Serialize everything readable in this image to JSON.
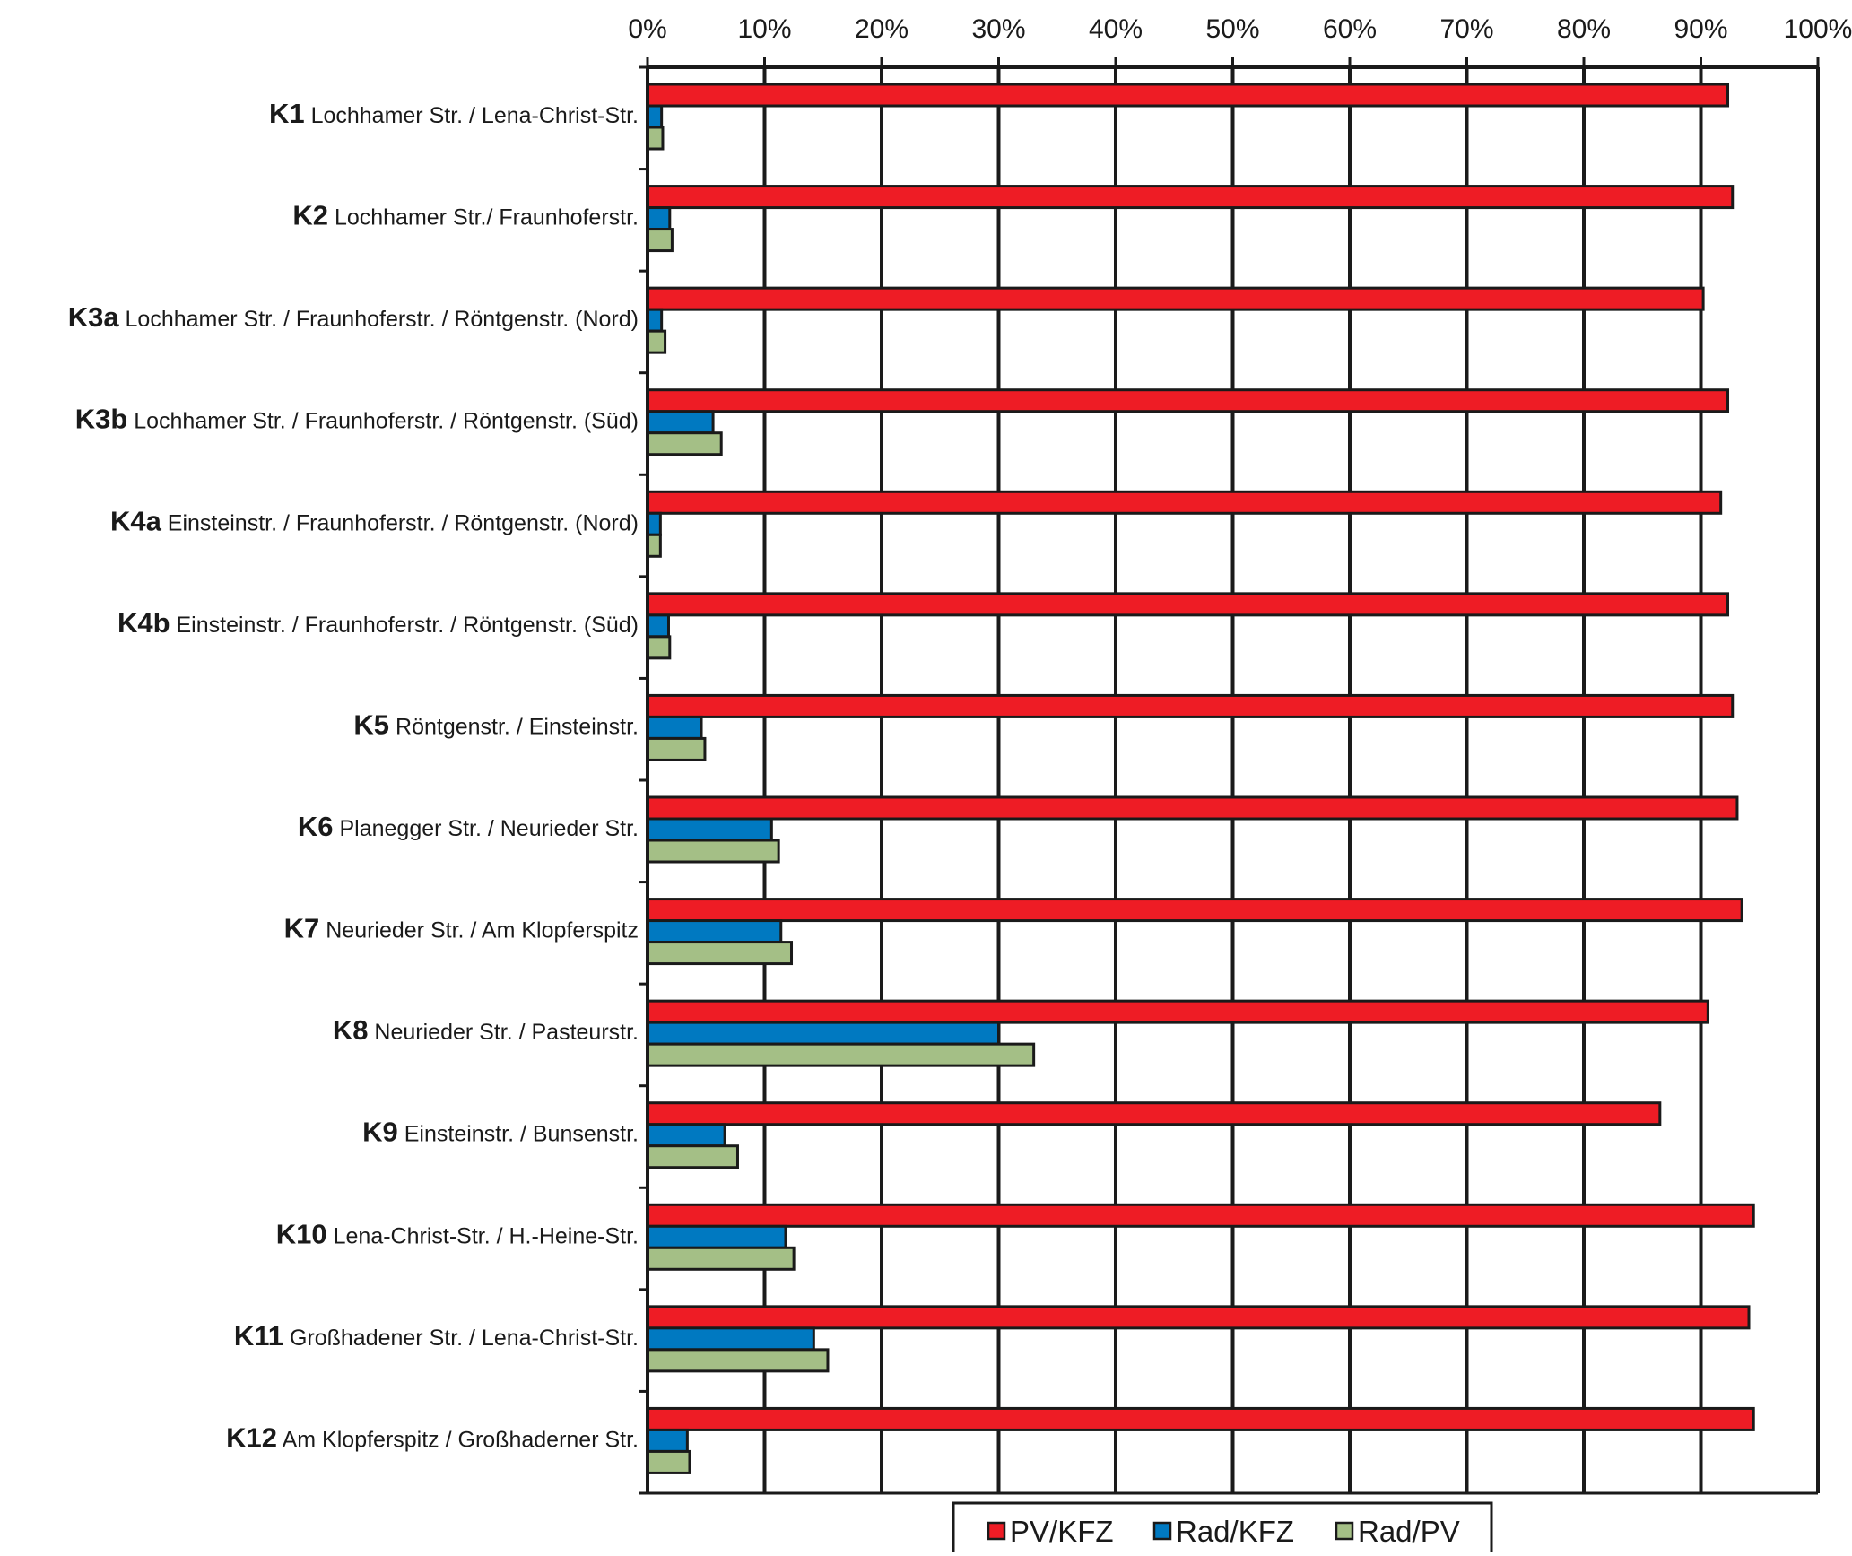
{
  "chart_data": {
    "type": "bar",
    "orientation": "horizontal",
    "x_ticks": [
      "0%",
      "10%",
      "20%",
      "30%",
      "40%",
      "50%",
      "60%",
      "70%",
      "80%",
      "90%",
      "100%"
    ],
    "xlim": [
      0,
      100
    ],
    "grid": true,
    "legend_position": "bottom",
    "categories": [
      {
        "code": "K1",
        "name": "Lochhamer Str. / Lena-Christ-Str."
      },
      {
        "code": "K2",
        "name": "Lochhamer Str./ Fraunhoferstr."
      },
      {
        "code": "K3a",
        "name": "Lochhamer Str. / Fraunhoferstr. / Röntgenstr. (Nord)"
      },
      {
        "code": "K3b",
        "name": "Lochhamer Str. / Fraunhoferstr. / Röntgenstr. (Süd)"
      },
      {
        "code": "K4a",
        "name": "Einsteinstr. / Fraunhoferstr. / Röntgenstr. (Nord)"
      },
      {
        "code": "K4b",
        "name": "Einsteinstr. / Fraunhoferstr. / Röntgenstr. (Süd)"
      },
      {
        "code": "K5",
        "name": "Röntgenstr. / Einsteinstr."
      },
      {
        "code": "K6",
        "name": "Planegger Str. / Neurieder Str."
      },
      {
        "code": "K7",
        "name": "Neurieder Str. / Am Klopferspitz"
      },
      {
        "code": "K8",
        "name": "Neurieder Str. / Pasteurstr."
      },
      {
        "code": "K9",
        "name": "Einsteinstr. / Bunsenstr."
      },
      {
        "code": "K10",
        "name": "Lena-Christ-Str. / H.-Heine-Str."
      },
      {
        "code": "K11",
        "name": "Großhadener Str. / Lena-Christ-Str."
      },
      {
        "code": "K12",
        "name": "Am Klopferspitz / Großhaderner Str."
      }
    ],
    "series": [
      {
        "name": "PV/KFZ",
        "color": "#ee1c25",
        "values": [
          92.3,
          92.7,
          90.2,
          92.3,
          91.7,
          92.3,
          92.7,
          93.1,
          93.5,
          90.6,
          86.5,
          94.5,
          94.1,
          94.5
        ]
      },
      {
        "name": "Rad/KFZ",
        "color": "#0079c1",
        "values": [
          1.2,
          1.9,
          1.2,
          5.6,
          1.1,
          1.8,
          4.6,
          10.6,
          11.4,
          30.0,
          6.6,
          11.8,
          14.2,
          3.4
        ]
      },
      {
        "name": "Rad/PV",
        "color": "#a4bf86",
        "values": [
          1.3,
          2.1,
          1.5,
          6.3,
          1.1,
          1.9,
          4.9,
          11.2,
          12.3,
          33.0,
          7.7,
          12.5,
          15.4,
          3.6
        ]
      }
    ]
  }
}
